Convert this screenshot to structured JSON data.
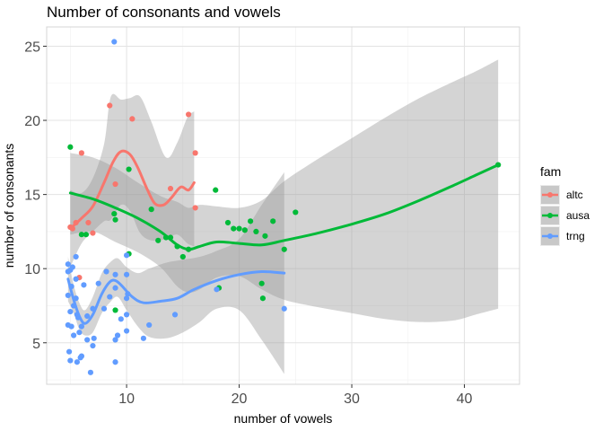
{
  "chart_data": {
    "type": "scatter",
    "title": "Number of consonants and vowels",
    "xlabel": "number of vowels",
    "ylabel": "number of consonants",
    "xlim": [
      2.9,
      44.9
    ],
    "ylim": [
      2.2,
      26.3
    ],
    "xticks": [
      10,
      20,
      30,
      40
    ],
    "yticks": [
      5,
      10,
      15,
      20,
      25
    ],
    "grid": true,
    "legend": {
      "title": "fam",
      "position": "right"
    },
    "band_color": "#999999",
    "series": [
      {
        "name": "altc",
        "color": "#F8766D",
        "points": [
          [
            5,
            12.8
          ],
          [
            5.2,
            12.7
          ],
          [
            5.5,
            13.1
          ],
          [
            5.8,
            9.4
          ],
          [
            6,
            17.8
          ],
          [
            6.6,
            13.1
          ],
          [
            7,
            12.4
          ],
          [
            8.5,
            21
          ],
          [
            9,
            15.7
          ],
          [
            10.5,
            20.1
          ],
          [
            13.9,
            15.4
          ],
          [
            15.5,
            20.4
          ],
          [
            16.1,
            17.8
          ],
          [
            16.1,
            14.1
          ]
        ],
        "trend": [
          [
            5,
            12.7
          ],
          [
            6,
            13.4
          ],
          [
            7,
            14.2
          ],
          [
            8,
            15.8
          ],
          [
            8.8,
            17.2
          ],
          [
            9.5,
            17.9
          ],
          [
            10.3,
            17.7
          ],
          [
            11,
            16.8
          ],
          [
            11.8,
            15.4
          ],
          [
            12.5,
            14.4
          ],
          [
            13.3,
            14.3
          ],
          [
            14,
            14.8
          ],
          [
            14.8,
            15.5
          ],
          [
            15.5,
            15.3
          ],
          [
            16,
            15.8
          ]
        ],
        "band": [
          [
            5,
            10.1,
            15.3
          ],
          [
            6,
            11.7,
            15.1
          ],
          [
            7,
            12.5,
            16.1
          ],
          [
            8,
            13.2,
            18.4
          ],
          [
            8.6,
            13.3,
            21.6
          ],
          [
            9.5,
            14.3,
            21.4
          ],
          [
            10.3,
            13.9,
            21.5
          ],
          [
            11.2,
            12.4,
            21.6
          ],
          [
            12.2,
            11.9,
            19.9
          ],
          [
            13.5,
            12,
            17.5
          ],
          [
            14.5,
            12.3,
            18.5
          ],
          [
            15.4,
            11.7,
            20.2
          ],
          [
            16,
            11.5,
            20.6
          ]
        ]
      },
      {
        "name": "ausa",
        "color": "#00BA38",
        "points": [
          [
            5,
            18.2
          ],
          [
            6,
            12.3
          ],
          [
            6.4,
            12.3
          ],
          [
            8.9,
            13.7
          ],
          [
            9,
            13.3
          ],
          [
            9,
            7.2
          ],
          [
            10.2,
            16.7
          ],
          [
            10.2,
            11
          ],
          [
            12.2,
            14
          ],
          [
            12.8,
            11.9
          ],
          [
            13.5,
            12.1
          ],
          [
            13.9,
            12.1
          ],
          [
            14.5,
            11.5
          ],
          [
            15,
            10.8
          ],
          [
            15.5,
            11.3
          ],
          [
            17.9,
            15.3
          ],
          [
            18.2,
            8.7
          ],
          [
            19,
            13.1
          ],
          [
            19.5,
            12.7
          ],
          [
            20,
            12.7
          ],
          [
            20.5,
            12.6
          ],
          [
            21,
            13.2
          ],
          [
            21.5,
            12.5
          ],
          [
            22,
            9
          ],
          [
            22.1,
            8
          ],
          [
            22.3,
            12.2
          ],
          [
            23,
            13.2
          ],
          [
            24,
            11.3
          ],
          [
            25,
            13.8
          ],
          [
            43,
            17
          ]
        ],
        "trend": [
          [
            5,
            15.1
          ],
          [
            7,
            14.7
          ],
          [
            9,
            14.1
          ],
          [
            11,
            13.4
          ],
          [
            13,
            12.5
          ],
          [
            14.5,
            11.6
          ],
          [
            15.5,
            11.3
          ],
          [
            16.5,
            11.5
          ],
          [
            18,
            11.8
          ],
          [
            20,
            11.7
          ],
          [
            22,
            11.6
          ],
          [
            24,
            11.9
          ],
          [
            27,
            12.4
          ],
          [
            30,
            13
          ],
          [
            33,
            13.7
          ],
          [
            36,
            14.6
          ],
          [
            39,
            15.6
          ],
          [
            41,
            16.3
          ],
          [
            43,
            17
          ]
        ],
        "band": [
          [
            5,
            12.3,
            17.8
          ],
          [
            7,
            12.5,
            17.5
          ],
          [
            9,
            11.8,
            16.8
          ],
          [
            11,
            11.1,
            15.8
          ],
          [
            13,
            10.1,
            14.9
          ],
          [
            14.5,
            8.8,
            14.5
          ],
          [
            15.5,
            8.4,
            14.1
          ],
          [
            16.5,
            8.6,
            14.3
          ],
          [
            18,
            9.4,
            14.2
          ],
          [
            20,
            9.5,
            14.1
          ],
          [
            22,
            8.6,
            14.6
          ],
          [
            24,
            7.9,
            15.9
          ],
          [
            27,
            7.4,
            17.4
          ],
          [
            30,
            7,
            18.8
          ],
          [
            33,
            6.6,
            20.2
          ],
          [
            36,
            6.4,
            21.5
          ],
          [
            39,
            6.5,
            22.6
          ],
          [
            41,
            6.9,
            23.3
          ],
          [
            43,
            7.3,
            24.1
          ]
        ]
      },
      {
        "name": "trng",
        "color": "#619CFF",
        "points": [
          [
            4.8,
            10.3
          ],
          [
            4.8,
            9.8
          ],
          [
            4.8,
            8.2
          ],
          [
            4.8,
            6.2
          ],
          [
            4.9,
            4.4
          ],
          [
            5,
            9.9
          ],
          [
            5,
            7.1
          ],
          [
            5,
            3.8
          ],
          [
            5.1,
            6.1
          ],
          [
            5.1,
            8.8
          ],
          [
            5.2,
            10.1
          ],
          [
            5.3,
            7.5
          ],
          [
            5.3,
            5.5
          ],
          [
            5.5,
            9.3
          ],
          [
            5.5,
            10.8
          ],
          [
            5.5,
            8
          ],
          [
            5.6,
            6.9
          ],
          [
            5.6,
            3.7
          ],
          [
            5.7,
            6.7
          ],
          [
            5.8,
            5.7
          ],
          [
            5.9,
            4
          ],
          [
            6,
            4.1
          ],
          [
            6,
            6.1
          ],
          [
            6.2,
            8.9
          ],
          [
            6.5,
            5.2
          ],
          [
            6.5,
            6.8
          ],
          [
            6.8,
            3
          ],
          [
            7,
            4.8
          ],
          [
            7,
            7.3
          ],
          [
            7.1,
            5.3
          ],
          [
            7.5,
            9
          ],
          [
            8,
            7.3
          ],
          [
            8.2,
            9.8
          ],
          [
            8.5,
            8.1
          ],
          [
            8.9,
            25.3
          ],
          [
            9,
            9.6
          ],
          [
            9,
            8.7
          ],
          [
            9,
            5.2
          ],
          [
            9,
            3.7
          ],
          [
            9.2,
            5.5
          ],
          [
            9.5,
            6.6
          ],
          [
            10,
            10.9
          ],
          [
            10,
            9.6
          ],
          [
            10.1,
            8.3
          ],
          [
            10,
            8
          ],
          [
            10,
            5.8
          ],
          [
            10,
            6.9
          ],
          [
            11.5,
            5.3
          ],
          [
            12,
            6.2
          ],
          [
            14.3,
            6.9
          ],
          [
            18,
            8.6
          ],
          [
            24,
            7.3
          ]
        ],
        "trend": [
          [
            4.8,
            9.3
          ],
          [
            5.3,
            7.9
          ],
          [
            5.8,
            6.8
          ],
          [
            6.3,
            6.3
          ],
          [
            7,
            6.9
          ],
          [
            7.8,
            8.3
          ],
          [
            8.5,
            9.1
          ],
          [
            9,
            9.2
          ],
          [
            9.5,
            8.9
          ],
          [
            10.5,
            8.1
          ],
          [
            11.5,
            7.7
          ],
          [
            13,
            7.8
          ],
          [
            14.5,
            8
          ],
          [
            16,
            8.6
          ],
          [
            18,
            9.2
          ],
          [
            20,
            9.6
          ],
          [
            22,
            9.8
          ],
          [
            24,
            9.7
          ]
        ],
        "band": [
          [
            4.8,
            7.8,
            10.8
          ],
          [
            5.3,
            7,
            8.9
          ],
          [
            5.8,
            5.9,
            7.7
          ],
          [
            6.3,
            5.5,
            7.2
          ],
          [
            7,
            5.7,
            8.1
          ],
          [
            7.8,
            7,
            9.7
          ],
          [
            8.5,
            7.7,
            10.4
          ],
          [
            9.2,
            8.1,
            10.7
          ],
          [
            10,
            7.2,
            10.1
          ],
          [
            11,
            6.1,
            9.7
          ],
          [
            12,
            5.4,
            10
          ],
          [
            13.5,
            5.3,
            10.4
          ],
          [
            15,
            5.7,
            10.6
          ],
          [
            16.5,
            6.4,
            10.8
          ],
          [
            18,
            7.3,
            11.2
          ],
          [
            20,
            7.2,
            12
          ],
          [
            22,
            5.2,
            14.3
          ],
          [
            24,
            2.9,
            16.5
          ]
        ]
      }
    ]
  }
}
